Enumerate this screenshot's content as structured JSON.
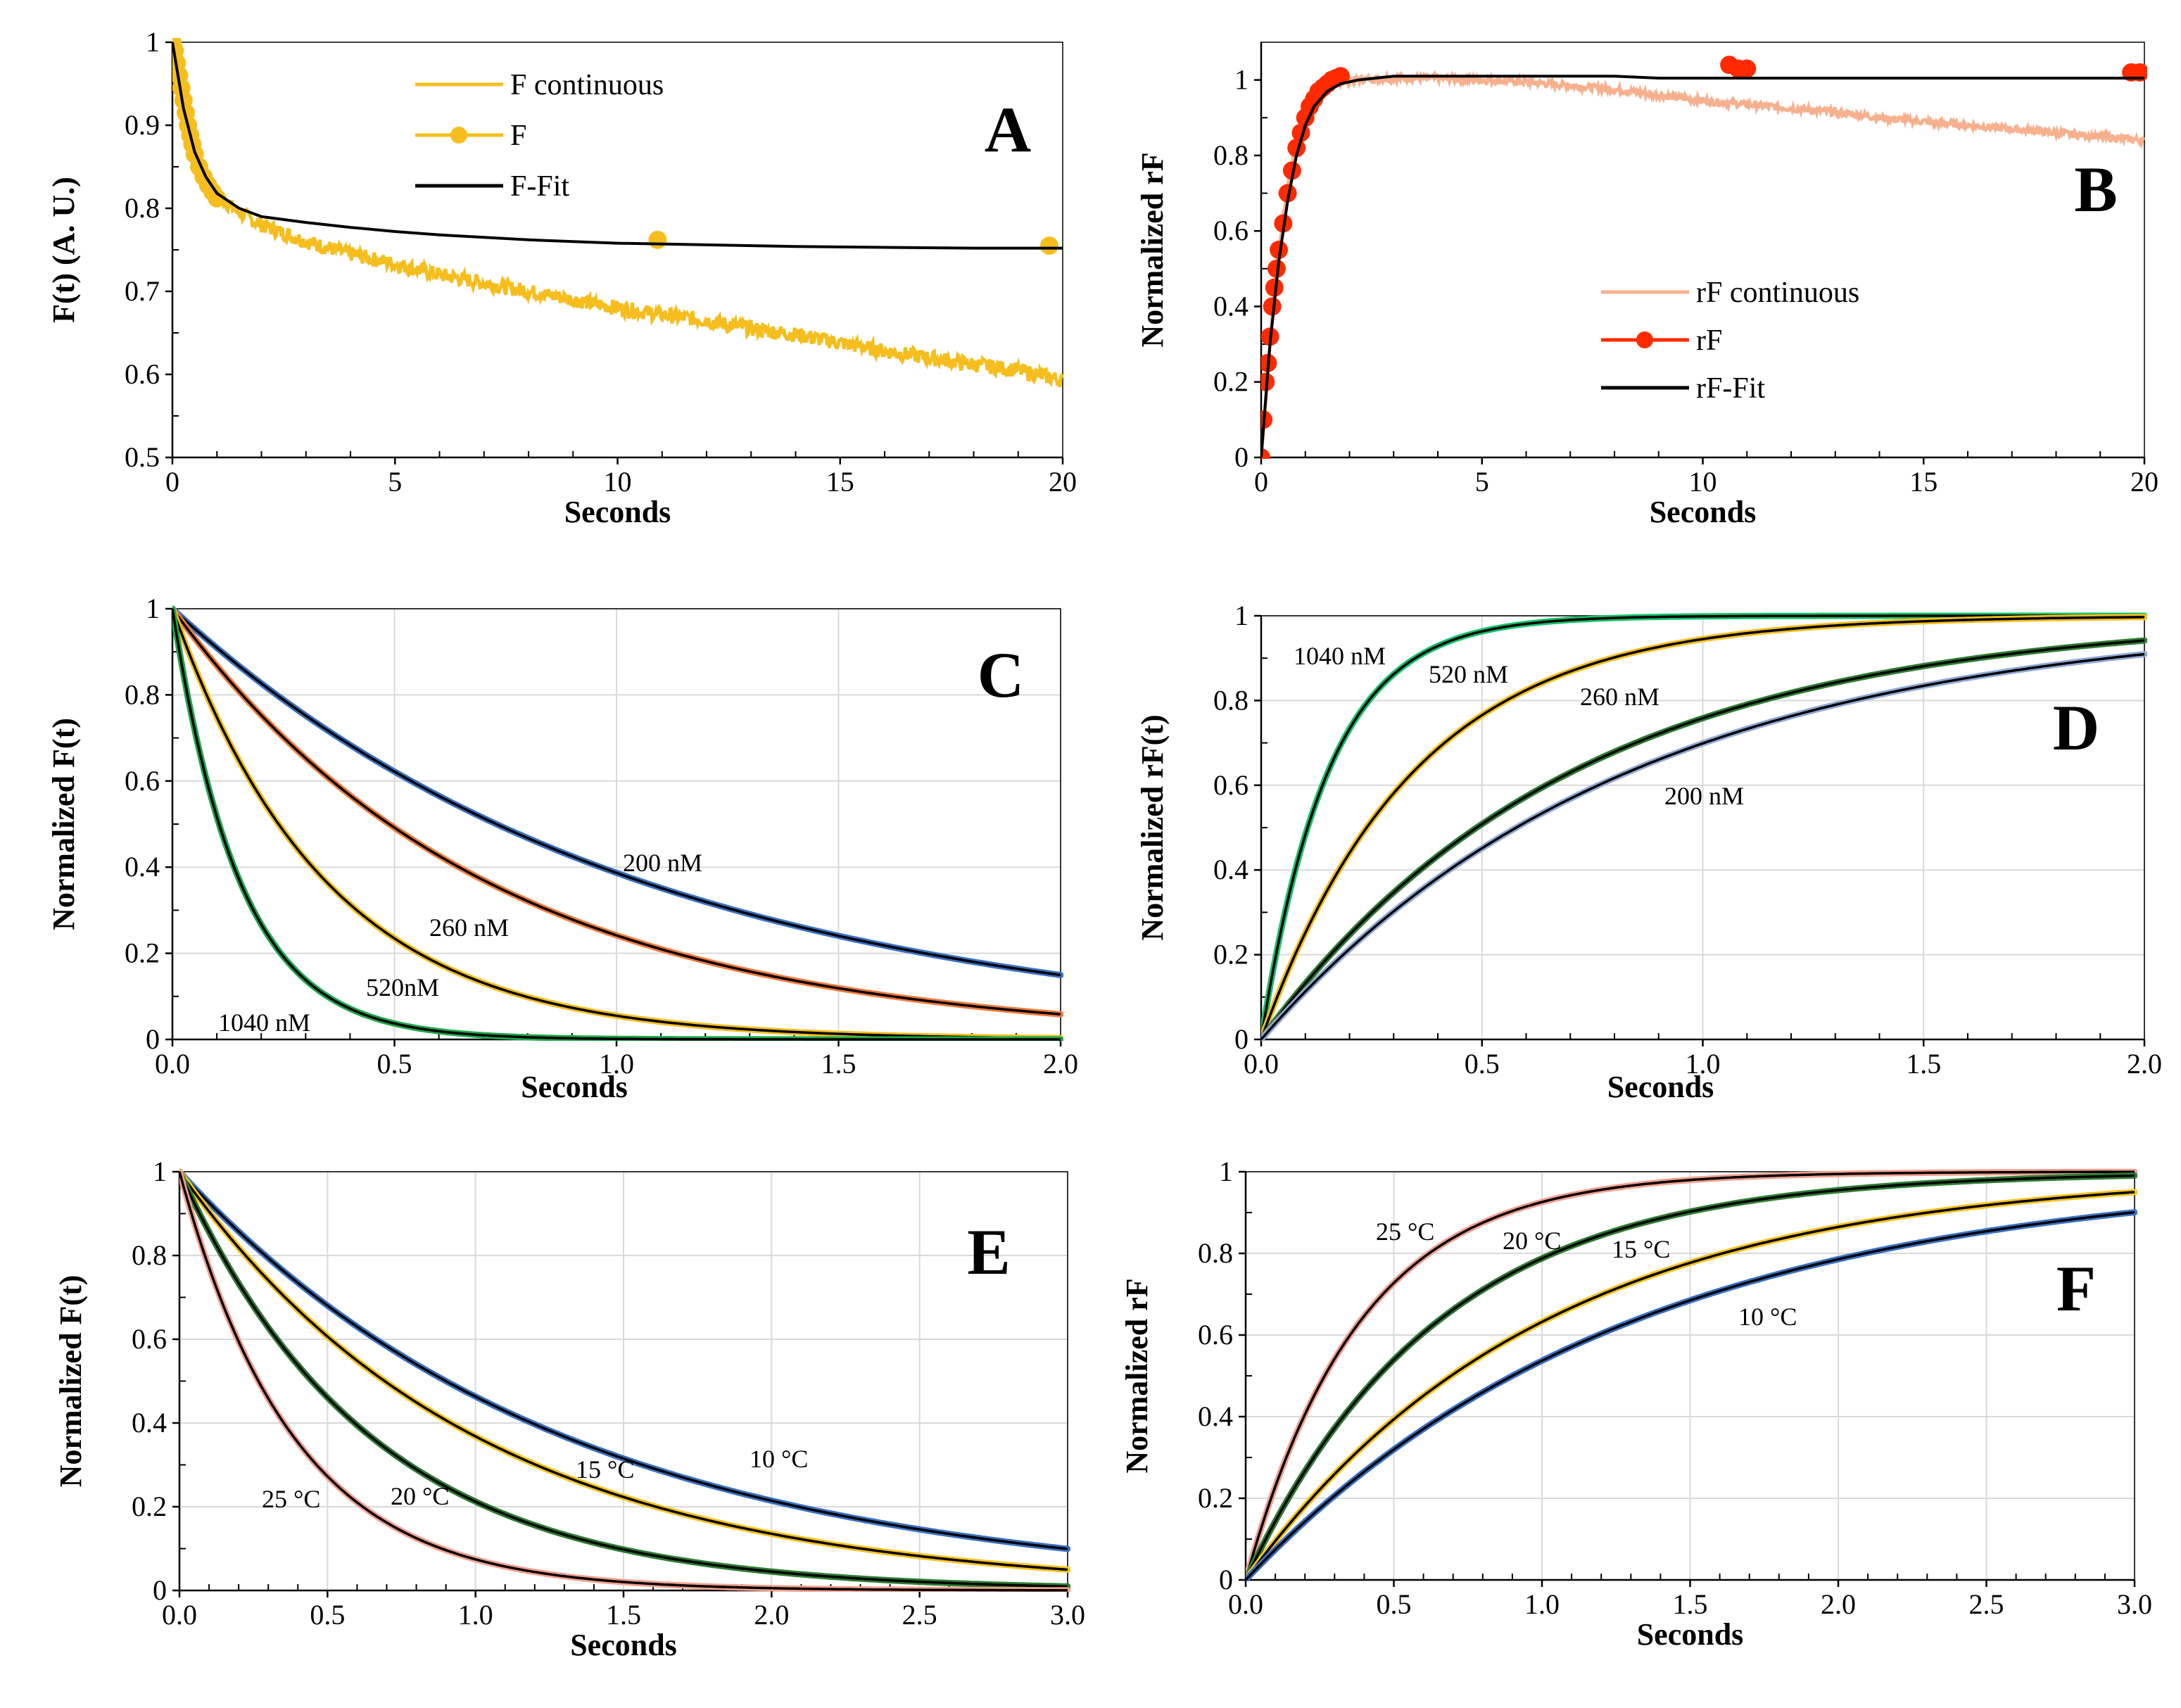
{
  "figure": {
    "x_axis_common": "Seconds"
  },
  "colors": {
    "black": "#000000",
    "gold": "#f5be1e",
    "gold_dark": "#e8a800",
    "salmon": "#f7b08e",
    "red": "#ff2a00",
    "blue": "#3a72c4",
    "orange": "#f07a3c",
    "green": "#1fa84a",
    "grid": "#d9d9d9",
    "pink": "#f1a08e",
    "darkgreen": "#2e7d32",
    "yellow": "#f7c21b",
    "green_d": "#16c26a",
    "steelblue": "#8fa9d6"
  },
  "chart_data": [
    {
      "id": "A",
      "panel_label": "A",
      "type": "line",
      "xlabel": "Seconds",
      "ylabel": "F(t) (A. U.)",
      "xlim": [
        0,
        20
      ],
      "ylim": [
        0.5,
        1.0
      ],
      "xticks": [
        0,
        5,
        10,
        15,
        20
      ],
      "xtick_labels": [
        "0",
        "5",
        "10",
        "15",
        "20"
      ],
      "yticks": [
        0.5,
        0.6,
        0.7,
        0.8,
        0.9,
        1.0
      ],
      "ytick_labels": [
        "0.5",
        "0.6",
        "0.7",
        "0.8",
        "0.9",
        "1"
      ],
      "grid": false,
      "legend": [
        "F continuous",
        "F",
        "F-Fit"
      ],
      "series": [
        {
          "name": "F continuous",
          "style": "noisy",
          "color": "gold",
          "x": [
            0,
            0.25,
            0.5,
            0.75,
            1,
            1.5,
            2,
            3,
            4,
            5,
            6,
            7,
            8,
            9,
            10,
            11,
            12,
            13,
            14,
            15,
            16,
            17,
            18,
            19,
            20
          ],
          "y": [
            1.0,
            0.92,
            0.87,
            0.835,
            0.815,
            0.795,
            0.78,
            0.76,
            0.745,
            0.733,
            0.72,
            0.71,
            0.7,
            0.69,
            0.68,
            0.672,
            0.665,
            0.655,
            0.648,
            0.638,
            0.628,
            0.62,
            0.612,
            0.605,
            0.593
          ]
        },
        {
          "name": "F",
          "style": "markers",
          "color": "gold",
          "x": [
            0,
            0.05,
            0.1,
            0.15,
            0.2,
            0.25,
            0.3,
            0.35,
            0.4,
            0.45,
            0.5,
            0.6,
            0.7,
            0.8,
            0.9,
            1.0,
            10.9,
            19.7
          ],
          "y": [
            1.0,
            0.99,
            0.975,
            0.96,
            0.945,
            0.93,
            0.915,
            0.9,
            0.888,
            0.877,
            0.865,
            0.85,
            0.838,
            0.828,
            0.82,
            0.812,
            0.762,
            0.755
          ]
        },
        {
          "name": "F-Fit",
          "style": "line",
          "color": "black",
          "x": [
            0,
            0.25,
            0.5,
            0.75,
            1,
            1.5,
            2,
            3,
            4,
            5,
            6,
            7,
            8,
            9,
            10,
            12,
            14,
            16,
            18,
            20
          ],
          "y": [
            1.0,
            0.92,
            0.868,
            0.838,
            0.818,
            0.8,
            0.79,
            0.783,
            0.777,
            0.772,
            0.768,
            0.765,
            0.762,
            0.76,
            0.758,
            0.756,
            0.754,
            0.753,
            0.752,
            0.752
          ]
        }
      ]
    },
    {
      "id": "B",
      "panel_label": "B",
      "type": "line",
      "xlabel": "Seconds",
      "ylabel": "Normalized rF",
      "xlim": [
        0,
        20
      ],
      "ylim": [
        0,
        1.1
      ],
      "xticks": [
        0,
        5,
        10,
        15,
        20
      ],
      "xtick_labels": [
        "0",
        "5",
        "10",
        "15",
        "20"
      ],
      "yticks": [
        0,
        0.2,
        0.4,
        0.6,
        0.8,
        1.0
      ],
      "ytick_labels": [
        "0",
        "0.2",
        "0.4",
        "0.6",
        "0.8",
        "1"
      ],
      "grid": false,
      "legend": [
        "rF continuous",
        "rF",
        "rF-Fit"
      ],
      "series": [
        {
          "name": "rF continuous",
          "style": "noisy",
          "color": "salmon",
          "x": [
            0,
            0.2,
            0.4,
            0.6,
            0.8,
            1.0,
            1.3,
            1.6,
            2,
            3,
            4,
            5,
            6,
            7,
            8,
            9,
            10,
            11,
            12,
            13,
            14,
            15,
            16,
            17,
            18,
            19,
            20
          ],
          "y": [
            0,
            0.3,
            0.55,
            0.72,
            0.84,
            0.92,
            0.97,
            0.99,
            1.0,
            1.005,
            1.005,
            1.0,
            0.995,
            0.985,
            0.975,
            0.96,
            0.945,
            0.935,
            0.925,
            0.915,
            0.9,
            0.89,
            0.88,
            0.87,
            0.86,
            0.85,
            0.84
          ]
        },
        {
          "name": "rF",
          "style": "markers",
          "color": "red",
          "x": [
            0,
            0.05,
            0.1,
            0.15,
            0.2,
            0.25,
            0.3,
            0.35,
            0.4,
            0.5,
            0.6,
            0.7,
            0.8,
            0.9,
            1.0,
            1.1,
            1.2,
            1.3,
            1.4,
            1.5,
            1.6,
            1.7,
            1.8,
            10.6,
            10.8,
            11.0,
            19.7,
            19.9
          ],
          "y": [
            0,
            0.1,
            0.2,
            0.25,
            0.32,
            0.4,
            0.45,
            0.5,
            0.55,
            0.62,
            0.7,
            0.76,
            0.82,
            0.86,
            0.9,
            0.93,
            0.95,
            0.97,
            0.98,
            0.99,
            1.0,
            1.005,
            1.01,
            1.04,
            1.03,
            1.03,
            1.02,
            1.02
          ]
        },
        {
          "name": "rF-Fit",
          "style": "line",
          "color": "black",
          "x": [
            0,
            0.2,
            0.4,
            0.6,
            0.8,
            1.0,
            1.2,
            1.5,
            1.8,
            2.2,
            3,
            5,
            8,
            9,
            20
          ],
          "y": [
            0,
            0.3,
            0.52,
            0.68,
            0.8,
            0.88,
            0.93,
            0.97,
            0.99,
            1.0,
            1.01,
            1.01,
            1.01,
            1.005,
            1.005
          ]
        }
      ]
    },
    {
      "id": "C",
      "panel_label": "C",
      "type": "line",
      "xlabel": "Seconds",
      "ylabel": "Normalized F(t)",
      "xlim": [
        0,
        2.0
      ],
      "ylim": [
        0,
        1.0
      ],
      "xticks": [
        0,
        0.5,
        1.0,
        1.5,
        2.0
      ],
      "xtick_labels": [
        "0.0",
        "0.5",
        "1.0",
        "1.5",
        "2.0"
      ],
      "yticks": [
        0,
        0.2,
        0.4,
        0.6,
        0.8,
        1.0
      ],
      "ytick_labels": [
        "0",
        "0.2",
        "0.4",
        "0.6",
        "0.8",
        "1"
      ],
      "grid": true,
      "series": [
        {
          "name": "200 nM",
          "style": "exp_decay",
          "k": 0.95,
          "color": "blue",
          "label_text": "200 nM"
        },
        {
          "name": "260 nM",
          "style": "exp_decay",
          "k": 1.42,
          "color": "orange",
          "label_text": "260 nM"
        },
        {
          "name": "520 nM",
          "style": "exp_decay",
          "k": 2.9,
          "color": "gold",
          "label_text": "520nM"
        },
        {
          "name": "1040 nM",
          "style": "exp_decay",
          "k": 6.6,
          "color": "green",
          "label_text": "1040 nM"
        }
      ]
    },
    {
      "id": "D",
      "panel_label": "D",
      "type": "line",
      "xlabel": "Seconds",
      "ylabel": "Normalized rF(t)",
      "xlim": [
        0,
        2.0
      ],
      "ylim": [
        0,
        1.0
      ],
      "xticks": [
        0,
        0.5,
        1.0,
        1.5,
        2.0
      ],
      "xtick_labels": [
        "0.0",
        "0.5",
        "1.0",
        "1.5",
        "2.0"
      ],
      "yticks": [
        0,
        0.2,
        0.4,
        0.6,
        0.8,
        1.0
      ],
      "ytick_labels": [
        "0",
        "0.2",
        "0.4",
        "0.6",
        "0.8",
        "1"
      ],
      "grid": true,
      "series": [
        {
          "name": "1040 nM",
          "style": "exp_rise",
          "k": 6.6,
          "color": "green_d",
          "label_text": "1040 nM"
        },
        {
          "name": "520 nM",
          "style": "exp_rise",
          "k": 2.9,
          "color": "gold",
          "label_text": "520 nM"
        },
        {
          "name": "260 nM",
          "style": "exp_rise",
          "k": 1.42,
          "color": "darkgreen",
          "label_text": "260 nM"
        },
        {
          "name": "200 nM",
          "style": "exp_rise",
          "k": 1.2,
          "color": "steelblue",
          "label_text": "200 nM"
        }
      ]
    },
    {
      "id": "E",
      "panel_label": "E",
      "type": "line",
      "xlabel": "Seconds",
      "ylabel": "Normalized F(t)",
      "xlim": [
        0,
        3.0
      ],
      "ylim": [
        0,
        1.0
      ],
      "xticks": [
        0,
        0.5,
        1.0,
        1.5,
        2.0,
        2.5,
        3.0
      ],
      "xtick_labels": [
        "0.0",
        "0.5",
        "1.0",
        "1.5",
        "2.0",
        "2.5",
        "3.0"
      ],
      "yticks": [
        0,
        0.2,
        0.4,
        0.6,
        0.8,
        1.0
      ],
      "ytick_labels": [
        "0",
        "0.2",
        "0.4",
        "0.6",
        "0.8",
        "1"
      ],
      "grid": true,
      "series": [
        {
          "name": "10 °C",
          "style": "exp_decay",
          "k": 0.77,
          "color": "blue",
          "label_text": "10 °C"
        },
        {
          "name": "15 °C",
          "style": "exp_decay",
          "k": 1.0,
          "color": "yellow",
          "label_text": "15 °C"
        },
        {
          "name": "20 °C",
          "style": "exp_decay",
          "k": 1.55,
          "color": "darkgreen",
          "label_text": "20 °C"
        },
        {
          "name": "25 °C",
          "style": "exp_decay",
          "k": 2.6,
          "color": "pink",
          "label_text": "25 °C"
        }
      ]
    },
    {
      "id": "F",
      "panel_label": "F",
      "type": "line",
      "xlabel": "Seconds",
      "ylabel": "Normalized rF",
      "xlim": [
        0,
        3.0
      ],
      "ylim": [
        0,
        1.0
      ],
      "xticks": [
        0,
        0.5,
        1.0,
        1.5,
        2.0,
        2.5,
        3.0
      ],
      "xtick_labels": [
        "0.0",
        "0.5",
        "1.0",
        "1.5",
        "2.0",
        "2.5",
        "3.0"
      ],
      "yticks": [
        0,
        0.2,
        0.4,
        0.6,
        0.8,
        1.0
      ],
      "ytick_labels": [
        "0",
        "0.2",
        "0.4",
        "0.6",
        "0.8",
        "1"
      ],
      "grid": true,
      "series": [
        {
          "name": "25 °C",
          "style": "exp_rise",
          "k": 2.6,
          "color": "pink",
          "label_text": "25 °C"
        },
        {
          "name": "20 °C",
          "style": "exp_rise",
          "k": 1.55,
          "color": "darkgreen",
          "label_text": "20 °C"
        },
        {
          "name": "15 °C",
          "style": "exp_rise",
          "k": 1.0,
          "color": "yellow",
          "label_text": "15 °C"
        },
        {
          "name": "10 °C",
          "style": "exp_rise",
          "k": 0.77,
          "color": "blue",
          "label_text": "10 °C"
        }
      ]
    }
  ]
}
